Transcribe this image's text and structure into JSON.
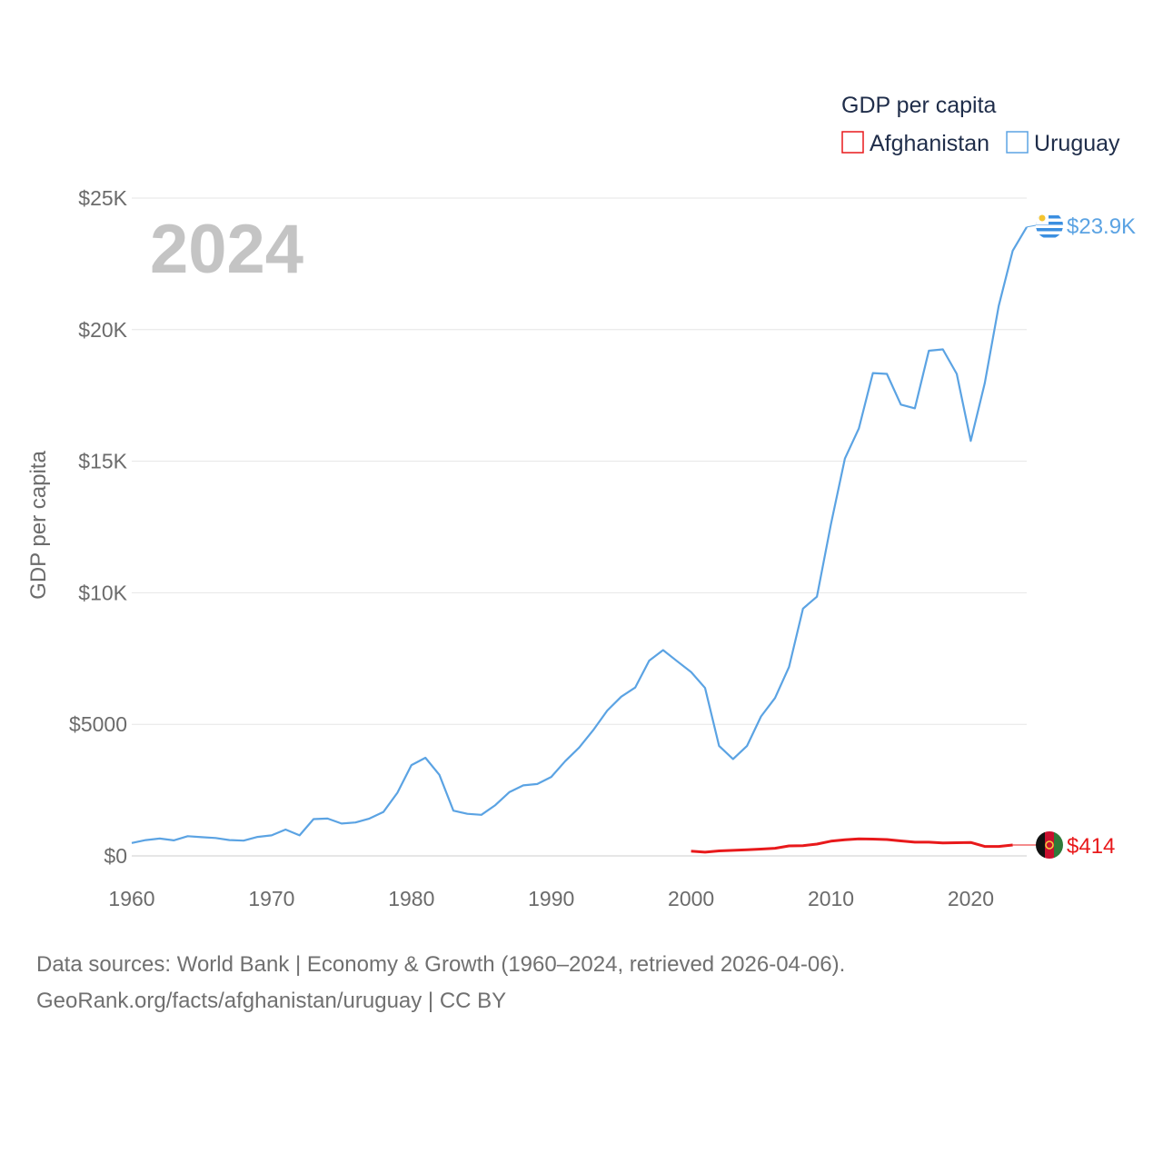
{
  "chart_data": {
    "type": "line",
    "legend_title": "GDP per capita",
    "ylabel": "GDP per capita",
    "xlabel": "",
    "year_overlay": "2024",
    "xlim": [
      1960,
      2024
    ],
    "ylim": [
      0,
      25000
    ],
    "x_ticks": [
      1960,
      1970,
      1980,
      1990,
      2000,
      2010,
      2020
    ],
    "y_ticks": [
      {
        "value": 0,
        "label": "$0"
      },
      {
        "value": 5000,
        "label": "$5000"
      },
      {
        "value": 10000,
        "label": "$10K"
      },
      {
        "value": 15000,
        "label": "$15K"
      },
      {
        "value": 20000,
        "label": "$20K"
      },
      {
        "value": 25000,
        "label": "$25K"
      }
    ],
    "grid": true,
    "legend_position": "top-right",
    "series": [
      {
        "name": "Afghanistan",
        "color": "#e8191b",
        "end_label": "$414",
        "flag_icon": "afghanistan-flag-icon",
        "x": [
          2000,
          2001,
          2002,
          2003,
          2004,
          2005,
          2006,
          2007,
          2008,
          2009,
          2010,
          2011,
          2012,
          2013,
          2014,
          2015,
          2016,
          2017,
          2018,
          2019,
          2020,
          2021,
          2022,
          2023
        ],
        "values": [
          180,
          140,
          190,
          210,
          230,
          260,
          290,
          380,
          390,
          450,
          560,
          610,
          650,
          640,
          620,
          570,
          520,
          520,
          490,
          500,
          510,
          360,
          360,
          414
        ]
      },
      {
        "name": "Uruguay",
        "color": "#5ba3e3",
        "end_label": "$23.9K",
        "flag_icon": "uruguay-flag-icon",
        "x": [
          1960,
          1961,
          1962,
          1963,
          1964,
          1965,
          1966,
          1967,
          1968,
          1969,
          1970,
          1971,
          1972,
          1973,
          1974,
          1975,
          1976,
          1977,
          1978,
          1979,
          1980,
          1981,
          1982,
          1983,
          1984,
          1985,
          1986,
          1987,
          1988,
          1989,
          1990,
          1991,
          1992,
          1993,
          1994,
          1995,
          1996,
          1997,
          1998,
          1999,
          2000,
          2001,
          2002,
          2003,
          2004,
          2005,
          2006,
          2007,
          2008,
          2009,
          2010,
          2011,
          2012,
          2013,
          2014,
          2015,
          2016,
          2017,
          2018,
          2019,
          2020,
          2021,
          2022,
          2023,
          2024
        ],
        "values": [
          490,
          600,
          660,
          590,
          750,
          710,
          680,
          600,
          580,
          720,
          780,
          1000,
          780,
          1400,
          1420,
          1230,
          1270,
          1420,
          1670,
          2400,
          3450,
          3730,
          3080,
          1720,
          1600,
          1560,
          1930,
          2420,
          2680,
          2730,
          3000,
          3600,
          4120,
          4780,
          5520,
          6050,
          6400,
          7420,
          7820,
          7400,
          6990,
          6380,
          4180,
          3680,
          4180,
          5300,
          6000,
          7180,
          9400,
          9850,
          12600,
          15100,
          16250,
          18350,
          18320,
          17150,
          17010,
          19200,
          19250,
          18320,
          15770,
          17960,
          20900,
          23000,
          23900
        ]
      }
    ]
  },
  "source": {
    "line1": "Data sources: World Bank | Economy & Growth (1960–2024, retrieved 2026-04-06).",
    "line2": "GeoRank.org/facts/afghanistan/uruguay | CC BY"
  }
}
